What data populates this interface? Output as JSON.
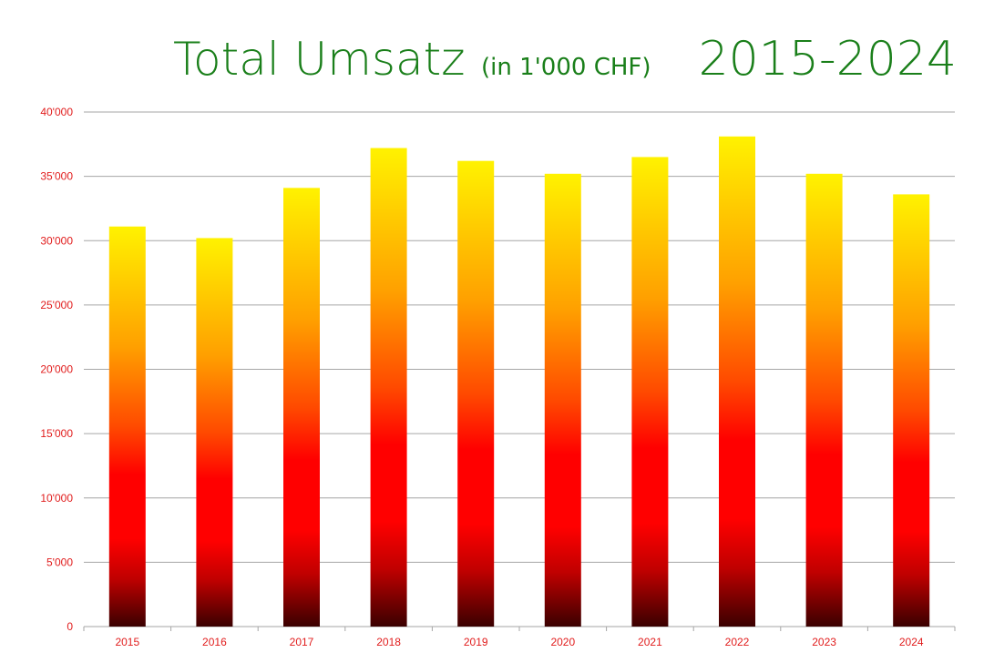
{
  "chart_data": {
    "type": "bar",
    "title": "Total Umsatz",
    "subtitle": "(in 1'000 CHF)",
    "period": "2015-2024",
    "categories": [
      "2015",
      "2016",
      "2017",
      "2018",
      "2019",
      "2020",
      "2021",
      "2022",
      "2023",
      "2024"
    ],
    "values": [
      31100,
      30200,
      34100,
      37200,
      36200,
      35200,
      36500,
      38100,
      35200,
      33600
    ],
    "ylim": [
      0,
      40000
    ],
    "yticks": [
      0,
      5000,
      10000,
      15000,
      20000,
      25000,
      30000,
      35000,
      40000
    ],
    "ytick_labels": [
      "0",
      "5'000",
      "10'000",
      "15'000",
      "20'000",
      "25'000",
      "30'000",
      "35'000",
      "40'000"
    ],
    "xlabel": "",
    "ylabel": "",
    "grid": true,
    "legend": "none",
    "colors": {
      "title": "#1a7f1a",
      "tick_labels": "#e11d1d",
      "gridline": "#a6a6a6",
      "bar_gradient": [
        "#5a0000",
        "#c00000",
        "#ff0000",
        "#ff3a00",
        "#ff9d00",
        "#ffc800",
        "#fff200"
      ]
    }
  }
}
